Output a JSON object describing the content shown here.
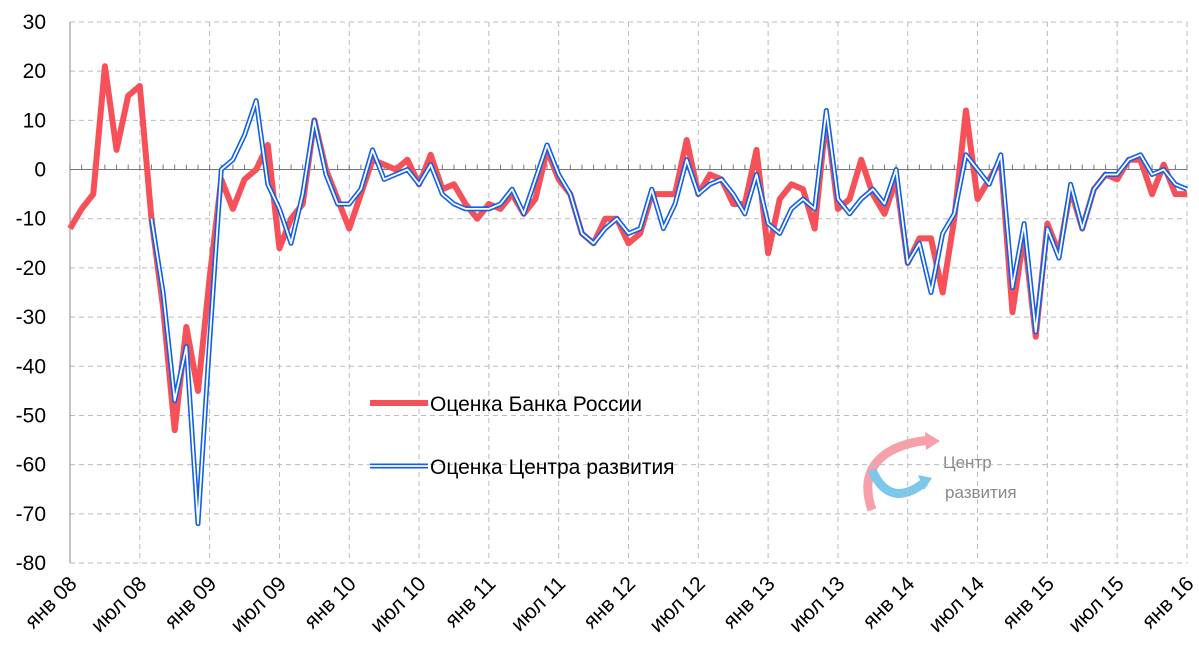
{
  "chart_data": {
    "type": "line",
    "categories": [
      "янв 08",
      null,
      null,
      null,
      null,
      null,
      "июл 08",
      null,
      null,
      null,
      null,
      null,
      "янв 09",
      null,
      null,
      null,
      null,
      null,
      "июл 09",
      null,
      null,
      null,
      null,
      null,
      "янв 10",
      null,
      null,
      null,
      null,
      null,
      "июл 10",
      null,
      null,
      null,
      null,
      null,
      "янв 11",
      null,
      null,
      null,
      null,
      null,
      "июл 11",
      null,
      null,
      null,
      null,
      null,
      "янв 12",
      null,
      null,
      null,
      null,
      null,
      "июл 12",
      null,
      null,
      null,
      null,
      null,
      "янв 13",
      null,
      null,
      null,
      null,
      null,
      "июл 13",
      null,
      null,
      null,
      null,
      null,
      "янв 14",
      null,
      null,
      null,
      null,
      null,
      "июл 14",
      null,
      null,
      null,
      null,
      null,
      "янв 15",
      null,
      null,
      null,
      null,
      null,
      "июл 15",
      null,
      null,
      null,
      null,
      null,
      "янв 16"
    ],
    "series": [
      {
        "name": "Оценка Банка России",
        "color": "#f65058",
        "values": [
          -12,
          -8,
          -5,
          21,
          4,
          15,
          17,
          -10,
          -28,
          -53,
          -32,
          -45,
          -22,
          -2,
          -8,
          -2,
          0,
          5,
          -16,
          -10,
          -7,
          10,
          0,
          -6,
          -12,
          -5,
          2,
          1,
          0,
          2,
          -3,
          3,
          -4,
          -3,
          -7,
          -10,
          -7,
          -8,
          -5,
          -9,
          -6,
          4,
          -2,
          -5,
          -13,
          -15,
          -10,
          -10,
          -15,
          -13,
          -5,
          -5,
          -5,
          6,
          -5,
          -1,
          -2,
          -7,
          -7,
          4,
          -17,
          -6,
          -3,
          -4,
          -12,
          11,
          -8,
          -6,
          2,
          -5,
          -9,
          -2,
          -19,
          -14,
          -14,
          -25,
          -10,
          12,
          -6,
          -2,
          2,
          -29,
          -13,
          -34,
          -11,
          -17,
          -4,
          -12,
          -4,
          -1,
          -2,
          2,
          2,
          -5,
          1,
          -5,
          -5
        ]
      },
      {
        "name": "Оценка Центра развития",
        "color": "#1060e8",
        "values": [
          null,
          null,
          null,
          null,
          null,
          null,
          null,
          -10,
          -25,
          -47,
          -36,
          -72,
          -35,
          0,
          2,
          7,
          14,
          -3,
          -8,
          -15,
          -5,
          10,
          -1,
          -7,
          -7,
          -4,
          4,
          -2,
          -1,
          0,
          -3,
          1,
          -5,
          -7,
          -8,
          -8,
          -8,
          -7,
          -4,
          -9,
          -2,
          5,
          -1,
          -5,
          -13,
          -15,
          -12,
          -10,
          -13,
          -12,
          -4,
          -12,
          -7,
          2,
          -5,
          -3,
          -2,
          -5,
          -9,
          -1,
          -11,
          -13,
          -8,
          -6,
          -8,
          12,
          -6,
          -9,
          -6,
          -4,
          -7,
          0,
          -19,
          -15,
          -25,
          -13,
          -9,
          3,
          0,
          -3,
          3,
          -24,
          -11,
          -33,
          -12,
          -18,
          -3,
          -12,
          -4,
          -1,
          -1,
          2,
          3,
          -1,
          0,
          -3,
          -4
        ]
      }
    ],
    "ylim": [
      -80,
      30
    ],
    "yticks": [
      30,
      20,
      10,
      0,
      -10,
      -20,
      -30,
      -40,
      -50,
      -60,
      -70,
      -80
    ],
    "grid": true,
    "logo": [
      "Центр",
      "развития"
    ]
  }
}
